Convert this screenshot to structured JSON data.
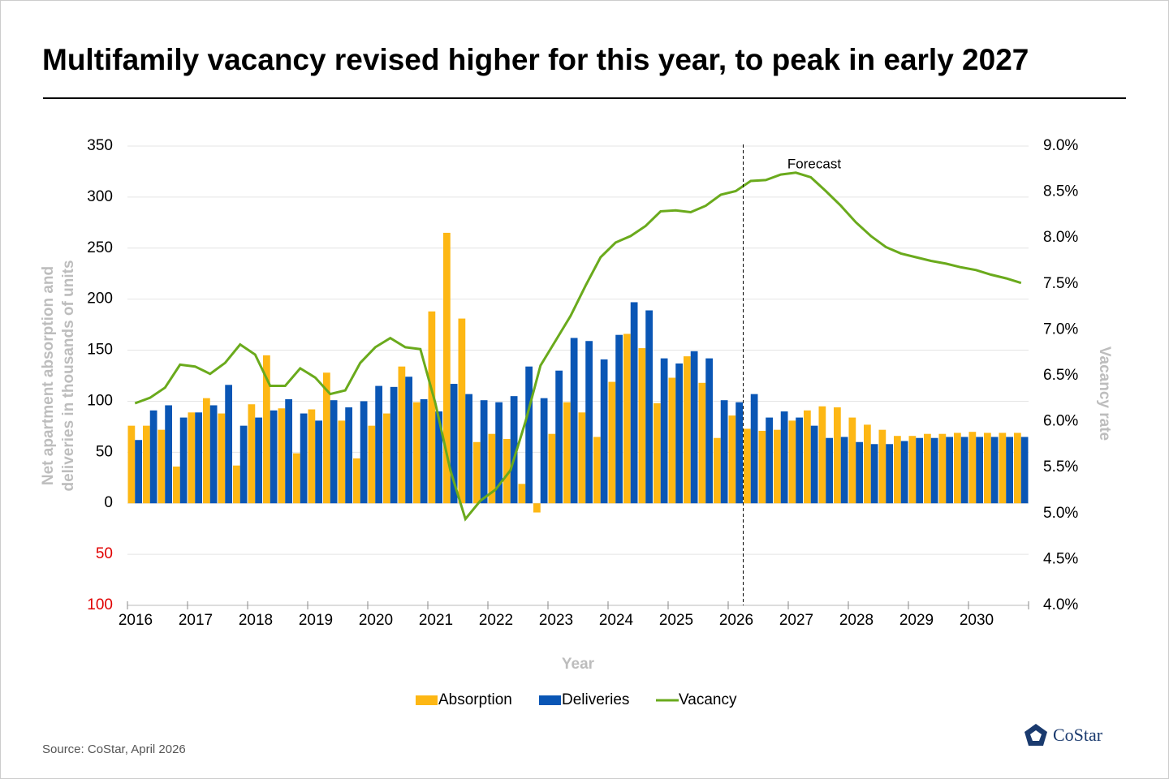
{
  "chart_data": {
    "type": "bar-line",
    "title": "Multifamily vacancy revised higher for this year, to peak in early 2027",
    "y_label": [
      "Net apartment absorption and",
      "deliveries in thousands of units"
    ],
    "y2_label": "Vacancy rate",
    "x_label": "Year",
    "annotation": "Forecast",
    "source": "Source: CoStar, April 2026",
    "logo": "CoStar",
    "categories": [
      "2016",
      null,
      null,
      null,
      "2017",
      null,
      null,
      null,
      "2018",
      null,
      null,
      null,
      "2019",
      null,
      null,
      null,
      "2020",
      null,
      null,
      null,
      "2021",
      null,
      null,
      null,
      "2022",
      null,
      null,
      null,
      "2023",
      null,
      null,
      null,
      "2024",
      null,
      null,
      null,
      "2025",
      null,
      null,
      null,
      "2026",
      null,
      null,
      null,
      "2027",
      null,
      null,
      null,
      "2028",
      null,
      null,
      null,
      "2029",
      null,
      null,
      null,
      "2030",
      null,
      null,
      null
    ],
    "series": [
      {
        "name": "Absorption",
        "color": "#fdb714",
        "values": [
          76,
          76,
          72,
          36,
          89,
          103,
          88,
          37,
          97,
          145,
          93,
          49,
          92,
          128,
          81,
          44,
          76,
          88,
          134,
          99,
          188,
          265,
          181,
          60,
          68,
          63,
          19,
          -9,
          68,
          99,
          89,
          65,
          119,
          166,
          152,
          98,
          123,
          144,
          118,
          64,
          86,
          73,
          71,
          72,
          81,
          91,
          95,
          94,
          84,
          77,
          72,
          66,
          66,
          68,
          68,
          69,
          70,
          69,
          69,
          69
        ]
      },
      {
        "name": "Deliveries",
        "color": "#0a56b5",
        "values": [
          62,
          91,
          96,
          84,
          89,
          96,
          116,
          76,
          84,
          91,
          102,
          88,
          81,
          101,
          94,
          100,
          115,
          114,
          124,
          102,
          90,
          117,
          107,
          101,
          99,
          105,
          134,
          103,
          130,
          162,
          159,
          141,
          165,
          197,
          189,
          142,
          137,
          149,
          142,
          101,
          99,
          107,
          84,
          90,
          84,
          76,
          64,
          65,
          60,
          58,
          58,
          61,
          64,
          64,
          65,
          65,
          65,
          65,
          65,
          65
        ]
      },
      {
        "name": "Vacancy",
        "color": "#6aaa1c",
        "axis": "y2",
        "values": [
          6.2,
          6.26,
          6.37,
          6.62,
          6.6,
          6.52,
          6.64,
          6.84,
          6.73,
          6.39,
          6.39,
          6.58,
          6.48,
          6.3,
          6.34,
          6.64,
          6.81,
          6.91,
          6.81,
          6.79,
          6.2,
          5.47,
          4.94,
          5.14,
          5.26,
          5.47,
          6.0,
          6.61,
          6.88,
          7.15,
          7.48,
          7.79,
          7.95,
          8.02,
          8.13,
          8.29,
          8.3,
          8.28,
          8.35,
          8.47,
          8.51,
          8.62,
          8.63,
          8.69,
          8.71,
          8.66,
          8.51,
          8.35,
          8.17,
          8.02,
          7.9,
          7.83,
          7.79,
          7.75,
          7.72,
          7.68,
          7.65,
          7.6,
          7.56,
          7.51
        ]
      }
    ],
    "ylim": [
      -100,
      350
    ],
    "yticks": [
      {
        "value": -100,
        "label": "100"
      },
      {
        "value": -50,
        "label": "50"
      },
      0,
      50,
      100,
      150,
      200,
      250,
      300,
      350
    ],
    "y2lim": [
      4.0,
      9.0
    ],
    "y2ticks": [
      {
        "value": 4.0,
        "label": "4.0%"
      },
      {
        "value": 4.5,
        "label": "4.5%"
      },
      {
        "value": 5.0,
        "label": "5.0%"
      },
      {
        "value": 5.5,
        "label": "5.5%"
      },
      {
        "value": 6.0,
        "label": "6.0%"
      },
      {
        "value": 6.5,
        "label": "6.5%"
      },
      {
        "value": 7.0,
        "label": "7.0%"
      },
      {
        "value": 7.5,
        "label": "7.5%"
      },
      {
        "value": 8.0,
        "label": "8.0%"
      },
      {
        "value": 8.5,
        "label": "8.5%"
      },
      {
        "value": 9.0,
        "label": "9.0%"
      }
    ],
    "grid": true
  }
}
